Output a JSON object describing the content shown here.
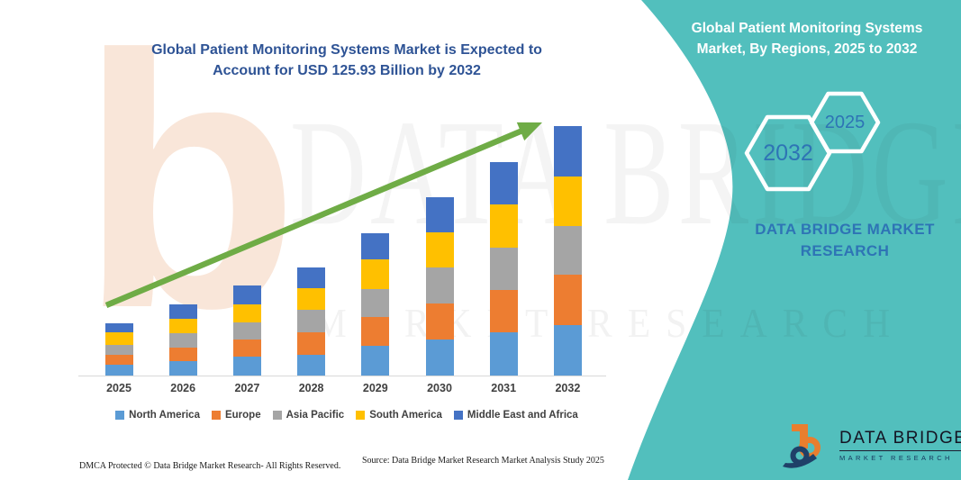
{
  "header": {
    "title_line1": "Global Patient Monitoring Systems Market is Expected to",
    "title_line2": "Account for USD 125.93 Billion by 2032"
  },
  "panel": {
    "background_color": "#52bfbd",
    "title_line1": "Global Patient Monitoring Systems",
    "title_line2": "Market, By Regions, 2025 to 2032",
    "hexagons": [
      {
        "label": "2032"
      },
      {
        "label": "2025"
      }
    ],
    "brand_line1": "DATA BRIDGE MARKET",
    "brand_line2": "RESEARCH",
    "logo": {
      "name": "DATA BRIDGE",
      "subtext": "MARKET RESEARCH"
    }
  },
  "watermarks": {
    "letter": "b",
    "row1": "DATA BRIDGE",
    "row2": "MARKET RESEARCH"
  },
  "footer": {
    "dmca": "DMCA Protected © Data Bridge Market Research-  All Rights Reserved.",
    "source": "Source: Data Bridge Market Research  Market Analysis Study 2025"
  },
  "chart_data": {
    "type": "bar",
    "stacked": true,
    "title": "Global Patient Monitoring Systems Market is Expected to Account for USD 125.93 Billion by 2032",
    "unit": "USD Billion",
    "categories": [
      "2025",
      "2026",
      "2027",
      "2028",
      "2029",
      "2030",
      "2031",
      "2032"
    ],
    "series": [
      {
        "name": "North America",
        "color": "#5B9BD5",
        "values": [
          5.7,
          7.4,
          9.5,
          10.6,
          14.9,
          18.2,
          21.9,
          25.7
        ]
      },
      {
        "name": "Europe",
        "color": "#ED7D31",
        "values": [
          4.9,
          6.8,
          8.6,
          11.4,
          14.7,
          18.4,
          21.5,
          25.3
        ]
      },
      {
        "name": "Asia Pacific",
        "color": "#A5A5A5",
        "values": [
          4.9,
          7.3,
          8.6,
          11.4,
          14.1,
          17.9,
          21.2,
          24.7
        ]
      },
      {
        "name": "South America",
        "color": "#FFC000",
        "values": [
          6.2,
          7.3,
          9.1,
          10.9,
          15.2,
          17.7,
          21.7,
          25.0
        ]
      },
      {
        "name": "Middle East and Africa",
        "color": "#4472C4",
        "values": [
          4.9,
          7.1,
          9.5,
          10.4,
          12.9,
          17.8,
          21.5,
          25.23
        ]
      }
    ],
    "totals_estimated": [
      26.6,
      35.9,
      45.3,
      54.7,
      71.8,
      90.0,
      107.8,
      125.93
    ],
    "ylim": [
      0,
      135
    ],
    "grid": false,
    "y_axis_shown": false,
    "legend_position": "bottom",
    "trend_arrow": {
      "color": "#6FAC46",
      "from_category": "2025",
      "to_category": "2032"
    }
  }
}
